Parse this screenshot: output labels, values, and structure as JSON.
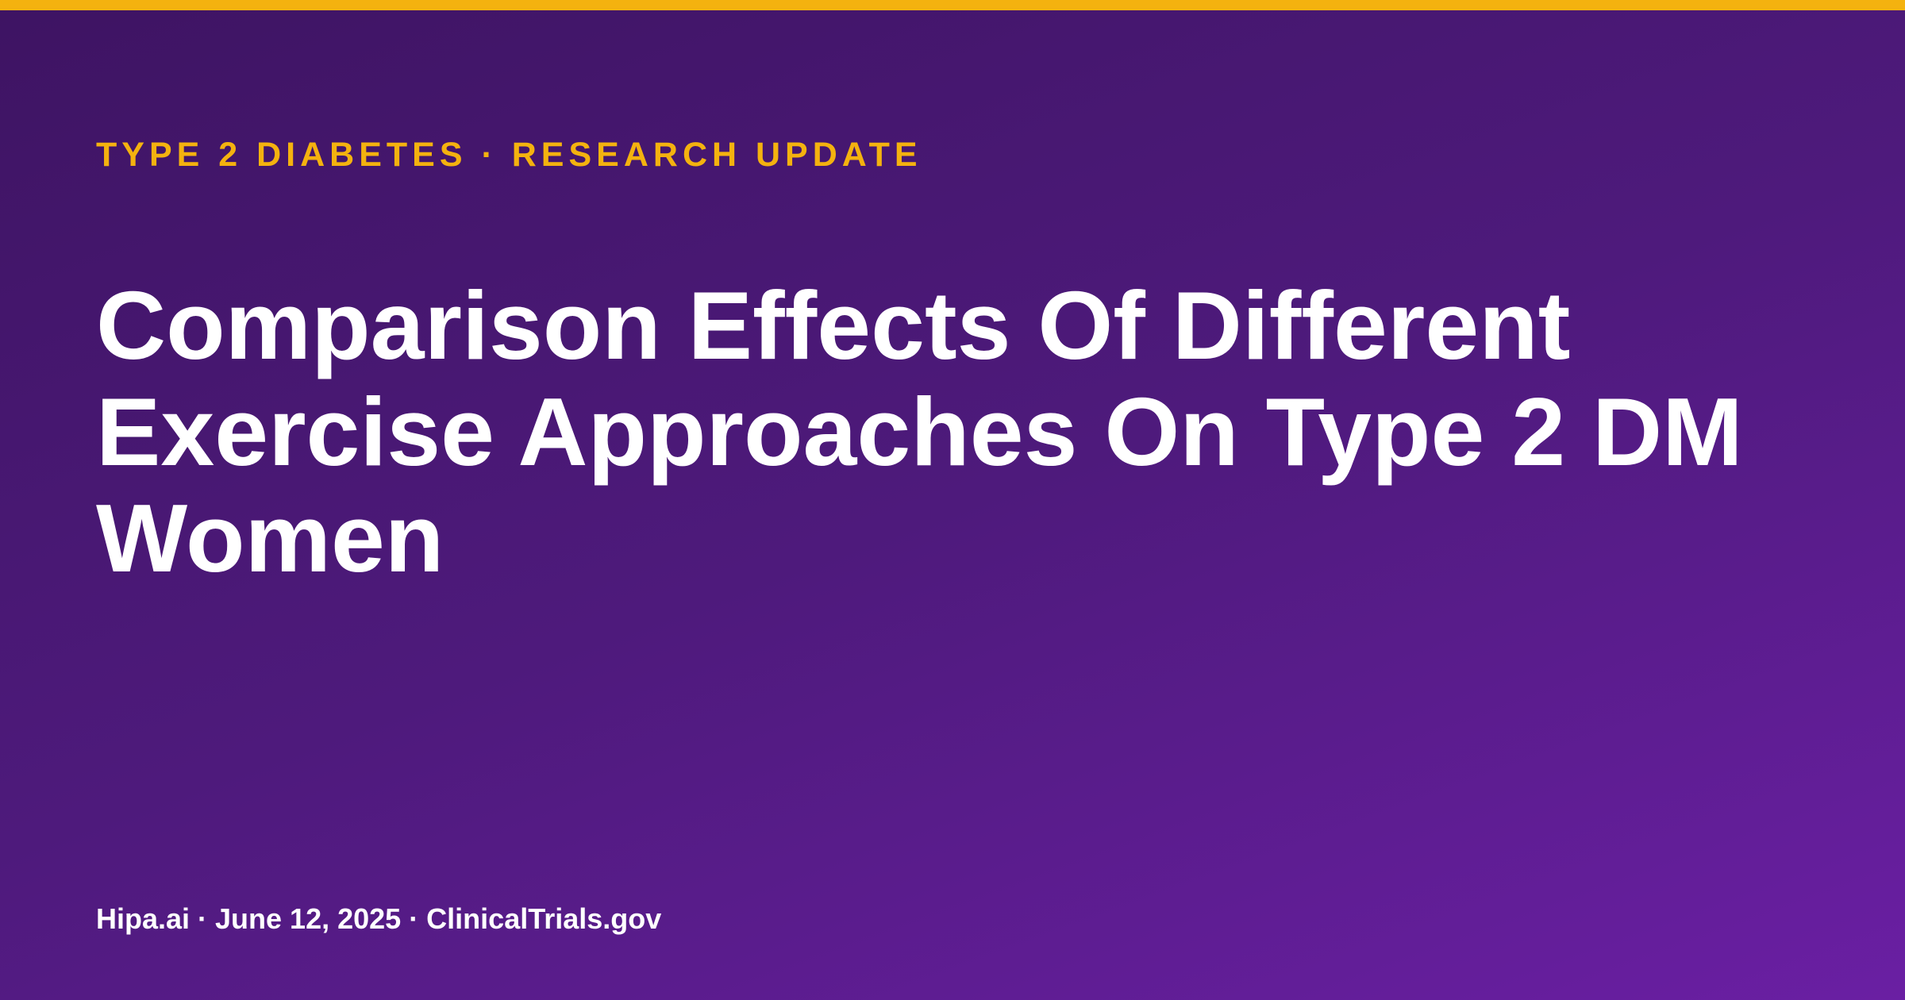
{
  "kicker": "TYPE 2 DIABETES · RESEARCH UPDATE",
  "title": "Comparison Effects Of Different Exercise Approaches On Type 2 DM Women",
  "footer": "Hipa.ai · June 12, 2025 · ClinicalTrials.gov"
}
